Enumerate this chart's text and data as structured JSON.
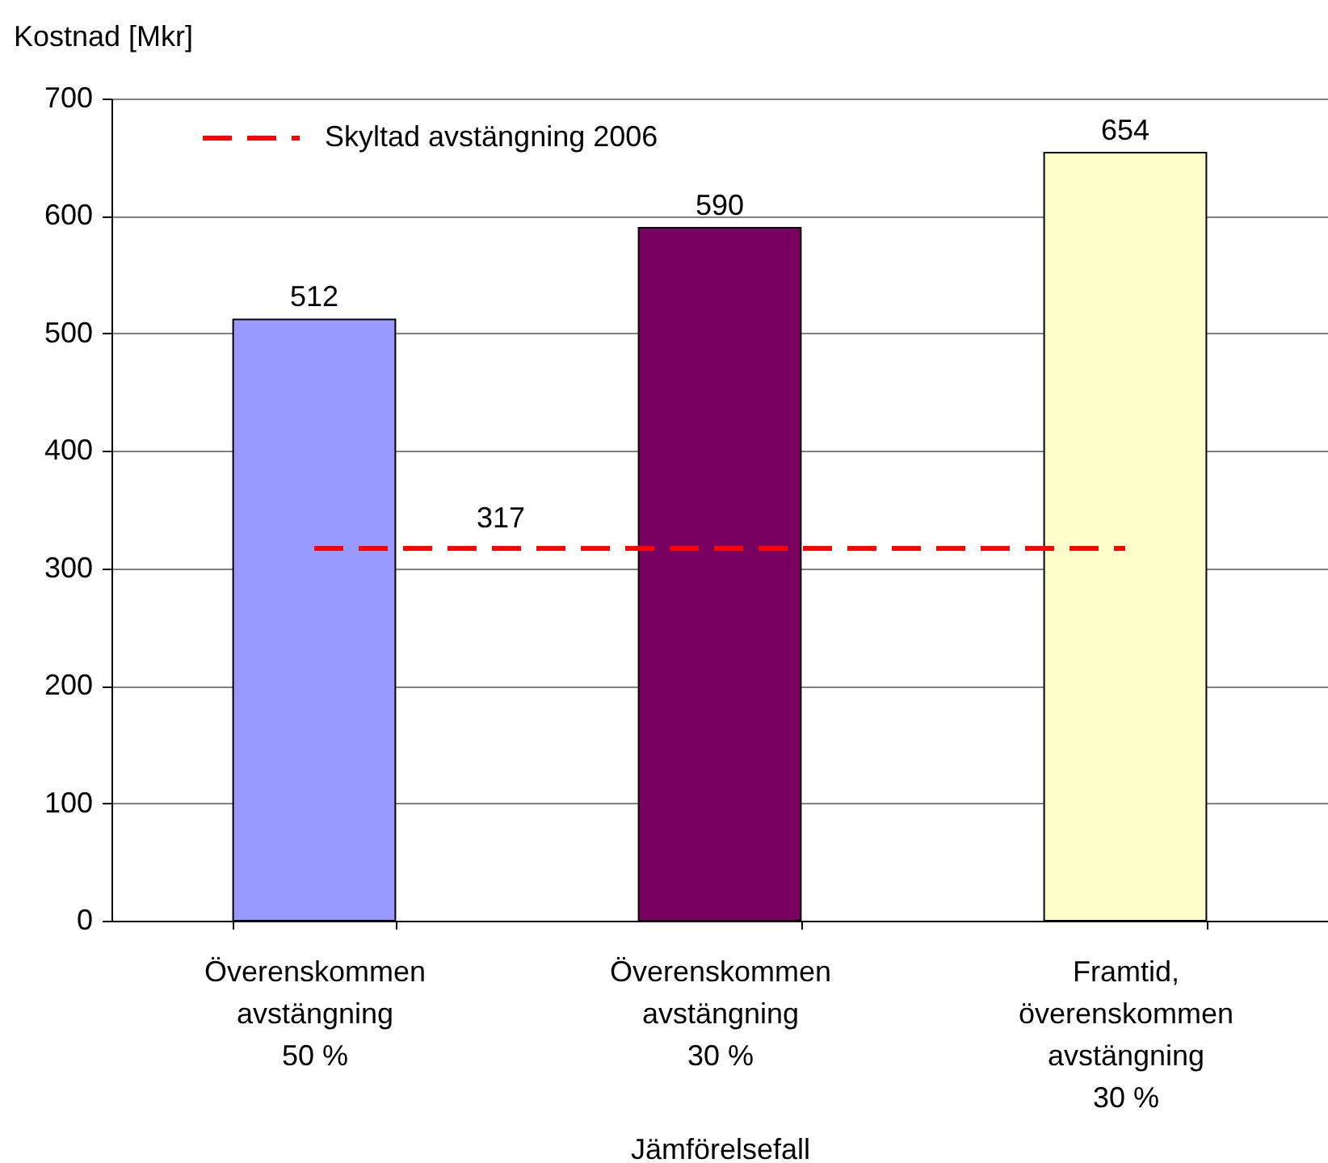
{
  "chart_data": {
    "type": "bar",
    "ylabel": "Kostnad [Mkr]",
    "xlabel": "Jämförelsefall",
    "categories": [
      "Överenskommen\navstängning\n50 %",
      "Överenskommen\navstängning\n30 %",
      "Framtid,\növerenskommen\navstängning\n30 %"
    ],
    "series": [
      {
        "colors": [
          "#9999ff",
          "#770060",
          "#ffffcc"
        ],
        "values": [
          512,
          590,
          654
        ],
        "value_labels": [
          "512",
          "590",
          "654"
        ]
      },
      {
        "type": "line",
        "name": "Skyltad avstängning 2006",
        "color": "#ff0000",
        "values": [
          317,
          317,
          317
        ],
        "line_style": "dashed",
        "marker": "none"
      }
    ],
    "annotations": [
      {
        "text": "317",
        "y": 317
      }
    ],
    "ylim": [
      0,
      700
    ],
    "yticks": [
      0,
      100,
      200,
      300,
      400,
      500,
      600,
      700
    ],
    "grid": "y",
    "legend": "top left"
  }
}
